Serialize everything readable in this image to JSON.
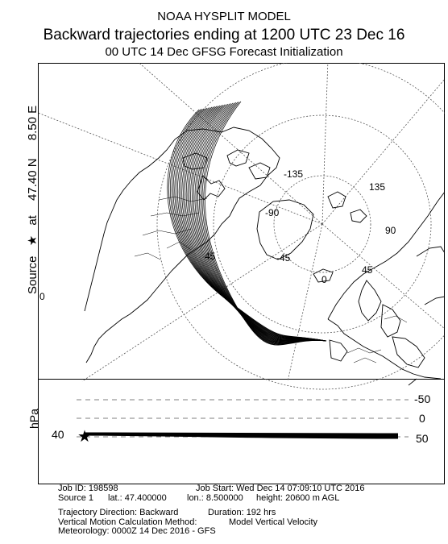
{
  "header": {
    "title": "NOAA HYSPLIT MODEL",
    "subtitle": "Backward trajectories ending at 1200 UTC 23 Dec 16",
    "init": "00 UTC 14 Dec    GFSG  Forecast Initialization"
  },
  "source_label": {
    "prefix": "Source",
    "star": "★",
    "at": "at",
    "lat": "47.40 N",
    "lon": "8.50 E"
  },
  "map": {
    "meridian_labels": [
      "-135",
      "135",
      "-90",
      "90",
      "45",
      "-45",
      "45",
      "0",
      "0"
    ],
    "source_point": {
      "lat": 47.4,
      "lon": 8.5
    },
    "trajectory_count": 27,
    "colors": {
      "trajectory": "#000000",
      "coast": "#000000",
      "grid": "#555555"
    }
  },
  "vertical": {
    "axis_label": "hPa",
    "left_value": "40",
    "levels": [
      "-50",
      "0",
      "50"
    ]
  },
  "info": {
    "job_id": "Job ID: 198598",
    "job_start": "Job Start: Wed Dec 14 07:09:10 UTC 2016",
    "source": "Source 1",
    "lat": "lat.: 47.400000",
    "lon": "lon.: 8.500000",
    "height": "height: 20600 m AGL",
    "direction": "Trajectory Direction: Backward",
    "duration": "Duration: 192 hrs",
    "motion_label": "Vertical Motion Calculation Method:",
    "motion_value": "Model Vertical Velocity",
    "meteorology": "Meteorology: 0000Z 14 Dec 2016 - GFS"
  }
}
